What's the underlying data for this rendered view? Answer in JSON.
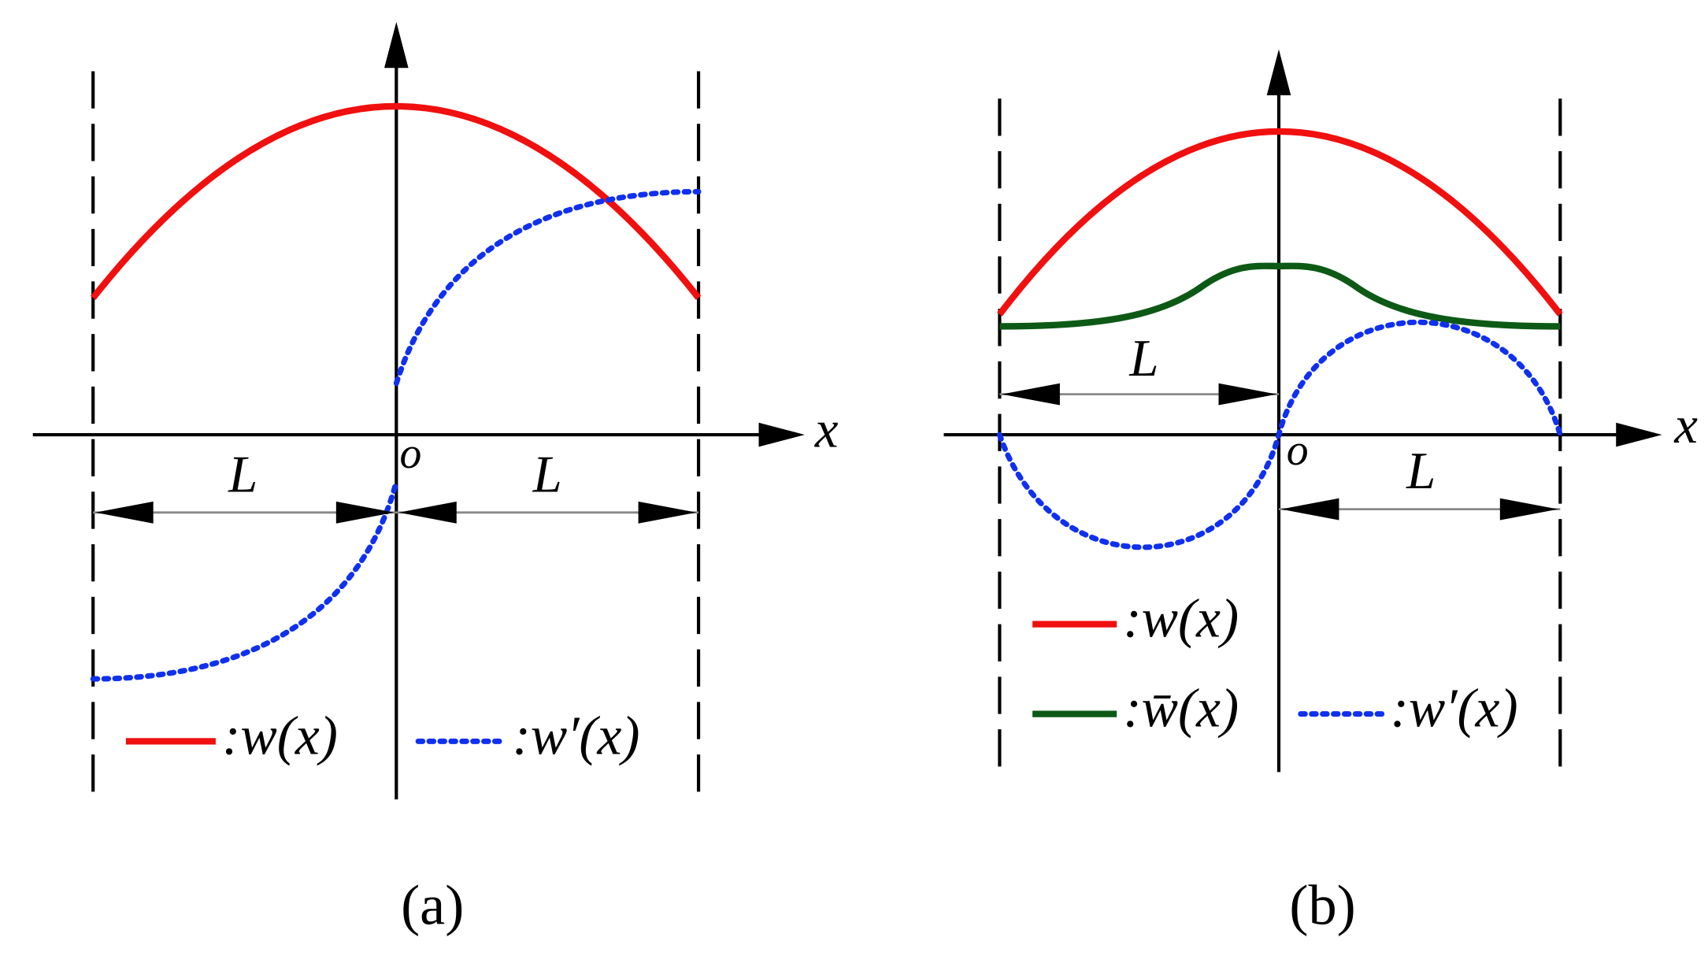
{
  "panels": [
    {
      "caption": "(a)",
      "x_axis_label": "x",
      "origin_label": "o",
      "dimension_labels": [
        "L",
        "L"
      ],
      "legend": [
        ":w(x)",
        ":w′(x)"
      ]
    },
    {
      "caption": "(b)",
      "x_axis_label": "x",
      "origin_label": "o",
      "dimension_labels": [
        "L",
        "L"
      ],
      "legend": [
        ":w(x)",
        ":w̄(x)",
        ":w′(x)"
      ]
    }
  ]
}
